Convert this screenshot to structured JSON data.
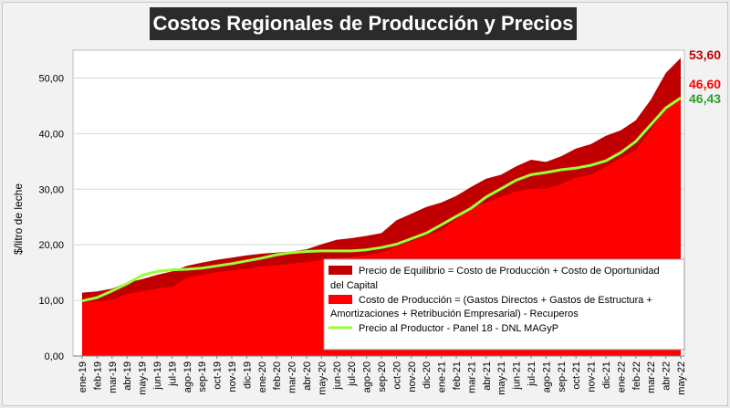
{
  "chart_data": {
    "type": "area",
    "title": "Costos Regionales de Producción y Precios",
    "ylabel": "$/litro de leche",
    "xlabel": "",
    "ylim": [
      0,
      55
    ],
    "yticks": [
      "0,00",
      "10,00",
      "20,00",
      "30,00",
      "40,00",
      "50,00"
    ],
    "ytick_values": [
      0,
      10,
      20,
      30,
      40,
      50
    ],
    "categories": [
      "ene-19",
      "feb-19",
      "mar-19",
      "abr-19",
      "may-19",
      "jun-19",
      "jul-19",
      "ago-19",
      "sep-19",
      "oct-19",
      "nov-19",
      "dic-19",
      "ene-20",
      "feb-20",
      "mar-20",
      "abr-20",
      "may-20",
      "jun-20",
      "jul-20",
      "ago-20",
      "sep-20",
      "oct-20",
      "nov-20",
      "dic-20",
      "ene-21",
      "feb-21",
      "mar-21",
      "abr-21",
      "may-21",
      "jun-21",
      "jul-21",
      "ago-21",
      "sep-21",
      "oct-21",
      "nov-21",
      "dic-21",
      "ene-22",
      "feb-22",
      "mar-22",
      "abr-22",
      "may-22"
    ],
    "series": [
      {
        "name": "Precio de Equilibrio = Costo de Producción + Costo de Oportunidad del Capital",
        "color": "#c00000",
        "values": [
          11.4,
          11.6,
          12.1,
          13.2,
          13.8,
          14.6,
          15.2,
          16.2,
          16.8,
          17.3,
          17.7,
          18.1,
          18.4,
          18.6,
          18.8,
          19.2,
          20.1,
          20.9,
          21.2,
          21.6,
          22.1,
          24.4,
          25.6,
          26.8,
          27.6,
          28.8,
          30.4,
          31.9,
          32.6,
          34.1,
          35.3,
          34.9,
          35.9,
          37.3,
          38.1,
          39.6,
          40.6,
          42.4,
          46.1,
          50.9,
          53.6
        ]
      },
      {
        "name": "Costo de Producción = (Gastos Directos + Gastos de Estructura + Amortizaciones + Retribución Empresarial) - Recuperos",
        "color": "#ff0000",
        "values": [
          9.6,
          9.8,
          10.1,
          11.1,
          11.6,
          12.1,
          12.4,
          14.1,
          14.6,
          15.1,
          15.4,
          15.7,
          16.1,
          16.3,
          16.6,
          16.9,
          17.3,
          17.6,
          17.8,
          18.1,
          18.6,
          19.6,
          20.6,
          21.6,
          22.6,
          24.6,
          26.6,
          27.6,
          28.6,
          29.6,
          30.1,
          30.1,
          30.9,
          32.1,
          32.6,
          34.1,
          35.6,
          37.1,
          40.6,
          44.6,
          46.6
        ]
      },
      {
        "name": "Precio al Productor - Panel 18 - DNL MAGyP",
        "color": "#99ff33",
        "values": [
          9.9,
          10.5,
          11.7,
          13.0,
          14.5,
          15.2,
          15.5,
          15.6,
          15.8,
          16.2,
          16.6,
          17.1,
          17.6,
          18.2,
          18.6,
          18.8,
          18.9,
          18.9,
          18.9,
          19.1,
          19.5,
          20.1,
          21.1,
          22.1,
          23.6,
          25.1,
          26.6,
          28.6,
          30.1,
          31.6,
          32.6,
          33.0,
          33.5,
          33.8,
          34.3,
          35.1,
          36.6,
          38.6,
          41.6,
          44.6,
          46.43
        ]
      }
    ],
    "end_labels": [
      {
        "text": "53,60",
        "color": "#c00000",
        "value": 53.6
      },
      {
        "text": "46,60",
        "color": "#ff0000",
        "value": 46.6
      },
      {
        "text": "46,43",
        "color": "#2e9e2e",
        "value": 46.43
      }
    ],
    "legend": {
      "position": "bottom-right",
      "entries": [
        {
          "line1": "Precio de Equilibrio = Costo de Producción + Costo de Oportunidad",
          "line2": "del Capital"
        },
        {
          "line1": "Costo de Producción = (Gastos Directos + Gastos de Estructura +",
          "line2": "Amortizaciones + Retribución Empresarial) - Recuperos"
        },
        {
          "line1": "Precio al Productor - Panel 18 - DNL MAGyP",
          "line2": ""
        }
      ]
    },
    "grid": true
  }
}
